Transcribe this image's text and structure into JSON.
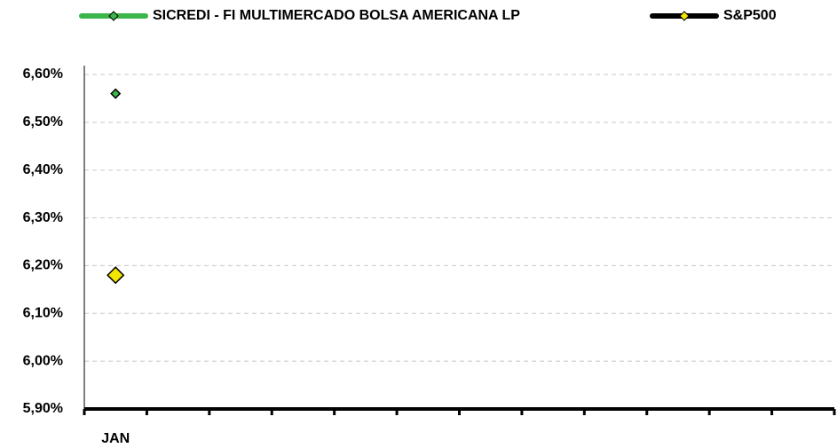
{
  "chart_data": {
    "type": "line",
    "categories": [
      "JAN",
      null,
      null,
      null,
      null,
      null,
      null,
      null,
      null,
      null,
      null,
      null
    ],
    "series": [
      {
        "name": "SICREDI - FI MULTIMERCADO BOLSA AMERICANA LP",
        "color": "#3cb54a",
        "marker_color": "#3cb54a",
        "values": [
          6.56,
          null,
          null,
          null,
          null,
          null,
          null,
          null,
          null,
          null,
          null,
          null
        ]
      },
      {
        "name": "S&P500",
        "color": "#000000",
        "marker_color": "#f2e600",
        "values": [
          6.18,
          null,
          null,
          null,
          null,
          null,
          null,
          null,
          null,
          null,
          null,
          null
        ]
      }
    ],
    "ylim": [
      5.9,
      6.6
    ],
    "yticks": [
      {
        "value": 5.9,
        "label": "5,90%"
      },
      {
        "value": 6.0,
        "label": "6,00%"
      },
      {
        "value": 6.1,
        "label": "6,10%"
      },
      {
        "value": 6.2,
        "label": "6,20%"
      },
      {
        "value": 6.3,
        "label": "6,30%"
      },
      {
        "value": 6.4,
        "label": "6,40%"
      },
      {
        "value": 6.5,
        "label": "6,50%"
      },
      {
        "value": 6.6,
        "label": "6,60%"
      }
    ],
    "grid": true,
    "legend": "top"
  }
}
